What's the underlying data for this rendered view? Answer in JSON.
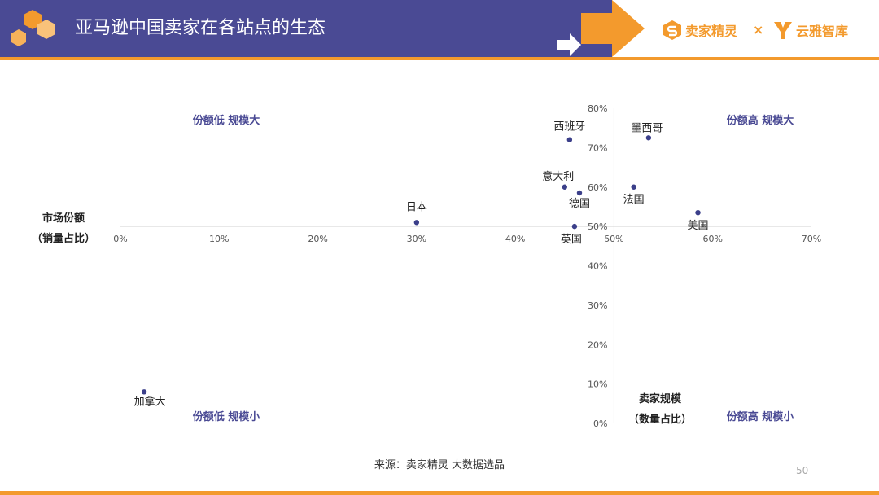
{
  "header": {
    "title": "亚马逊中国卖家在各站点的生态",
    "brand_left": "卖家精灵",
    "brand_sep": "×",
    "brand_right": "云雅智库",
    "colors": {
      "header_bg": "#4a4a94",
      "accent": "#f39a2d"
    }
  },
  "chart_data": {
    "type": "scatter",
    "xlabel": [
      "卖家规模",
      "（数量占比）"
    ],
    "ylabel": [
      "市场份额",
      "（销量占比）"
    ],
    "xlim": [
      0,
      70
    ],
    "ylim": [
      0,
      80
    ],
    "x_ticks": [
      "0%",
      "10%",
      "20%",
      "30%",
      "40%",
      "50%",
      "60%",
      "70%"
    ],
    "y_ticks": [
      "0%",
      "10%",
      "20%",
      "30%",
      "40%",
      "50%",
      "60%",
      "70%",
      "80%"
    ],
    "x_tick_values": [
      0,
      10,
      20,
      30,
      40,
      50,
      60,
      70
    ],
    "y_tick_values": [
      0,
      10,
      20,
      30,
      40,
      50,
      60,
      70,
      80
    ],
    "quadrants": [
      "份额低 规模大",
      "份额高 规模大",
      "份额低 规模小",
      "份额高 规模小"
    ],
    "points": [
      {
        "label": "西班牙",
        "x": 45.5,
        "y": 72
      },
      {
        "label": "墨西哥",
        "x": 53.5,
        "y": 72.5
      },
      {
        "label": "意大利",
        "x": 45,
        "y": 60
      },
      {
        "label": "法国",
        "x": 52,
        "y": 60
      },
      {
        "label": "德国",
        "x": 46.5,
        "y": 58.5
      },
      {
        "label": "日本",
        "x": 30,
        "y": 51
      },
      {
        "label": "美国",
        "x": 58.5,
        "y": 53.5
      },
      {
        "label": "英国",
        "x": 46,
        "y": 50
      },
      {
        "label": "加拿大",
        "x": 2.4,
        "y": 8
      }
    ],
    "point_color": "#3b3f8a",
    "quadrant_label_color": "#4a4a94"
  },
  "footer": {
    "source": "来源：卖家精灵 大数据选品",
    "page_number": "50"
  }
}
